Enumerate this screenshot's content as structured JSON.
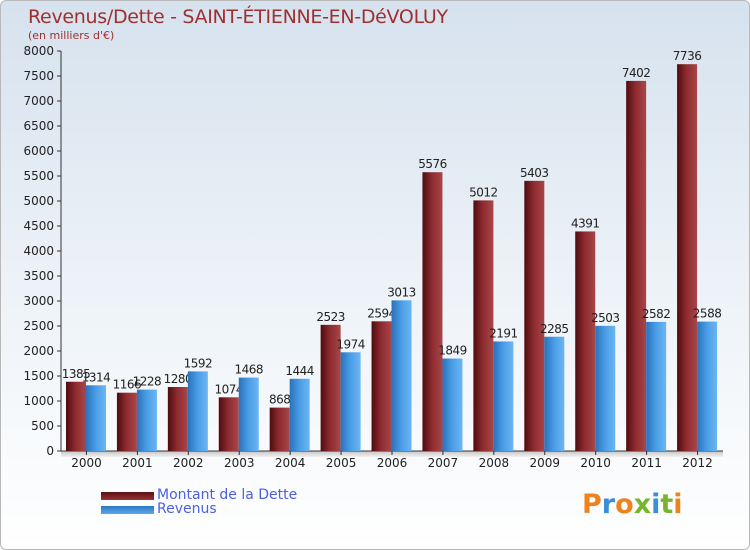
{
  "header": {
    "title": "Revenus/Dette - SAINT-ÉTIENNE-EN-DéVOLUY",
    "subtitle": "(en milliers d'€)"
  },
  "brand": {
    "logo_text": "Proxiti",
    "letter_colors": [
      "#f0821e",
      "#3a8fd8",
      "#f0821e",
      "#79b52c",
      "#3a8fd8",
      "#79b52c",
      "#f0821e"
    ]
  },
  "colors": {
    "debt": "#7b1f22",
    "revenue": "#3d8fdb"
  },
  "chart_data": {
    "type": "bar",
    "categories": [
      "2000",
      "2001",
      "2002",
      "2003",
      "2004",
      "2005",
      "2006",
      "2007",
      "2008",
      "2009",
      "2010",
      "2011",
      "2012"
    ],
    "series": [
      {
        "name": "Montant de la Dette",
        "values": [
          1385,
          1166,
          1280,
          1074,
          868,
          2523,
          2594,
          5576,
          5012,
          5403,
          4391,
          7402,
          7736
        ],
        "labels": [
          "1385",
          "1166",
          "1280",
          "1074",
          "868",
          "2523",
          "2594",
          "5576",
          "5012",
          "5403",
          "4391",
          "7402",
          "7736"
        ]
      },
      {
        "name": "Revenus",
        "values": [
          1314,
          1228,
          1592,
          1468,
          1444,
          1974,
          3013,
          1849,
          2191,
          2285,
          2503,
          2582,
          2588
        ],
        "labels": [
          "1314",
          "1228",
          "1592",
          "1468",
          "1444",
          "1974",
          "3013",
          "1849",
          "2191",
          "2285",
          "2503",
          "2582",
          "2588"
        ]
      }
    ],
    "ylim": [
      0,
      8000
    ],
    "yticks": [
      0,
      500,
      1000,
      1500,
      2000,
      2500,
      3000,
      3500,
      4000,
      4500,
      5000,
      5500,
      6000,
      6500,
      7000,
      7500,
      8000
    ],
    "grid": false,
    "legend_position": "bottom-left"
  }
}
